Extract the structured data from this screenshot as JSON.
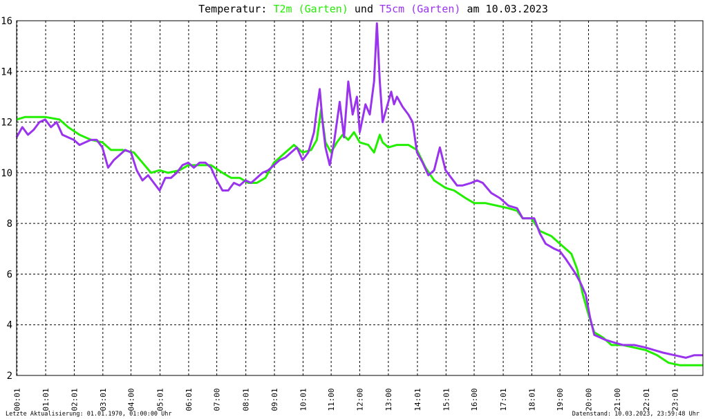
{
  "header": {
    "title_prefix": "Temperatur: ",
    "series1_label": "T2m (Garten)",
    "connector": " und ",
    "series2_label": "T5cm (Garten)",
    "title_suffix": " am 10.03.2023"
  },
  "footer": {
    "left": "Letzte Aktualisierung: 01.01.1970, 01:00:00 Uhr",
    "right": "Datenstand: 10.03.2023, 23:59:48 Uhr"
  },
  "colors": {
    "t2m": "#22ee00",
    "t5cm": "#9933ee",
    "grid": "#000000",
    "axis": "#000000"
  },
  "chart_data": {
    "type": "line",
    "title": "Temperatur: T2m (Garten) und T5cm (Garten) am 10.03.2023",
    "xlabel": "",
    "ylabel": "",
    "xlim": [
      0,
      24
    ],
    "ylim": [
      2,
      16
    ],
    "grid": true,
    "yticks": [
      2,
      4,
      6,
      8,
      10,
      12,
      14,
      16
    ],
    "xticks": [
      {
        "h": 0.0167,
        "label": "00:01"
      },
      {
        "h": 1.0167,
        "label": "01:01"
      },
      {
        "h": 2.0167,
        "label": "02:01"
      },
      {
        "h": 3.0167,
        "label": "03:01"
      },
      {
        "h": 4.0,
        "label": "04:00"
      },
      {
        "h": 5.0167,
        "label": "05:01"
      },
      {
        "h": 6.0167,
        "label": "06:01"
      },
      {
        "h": 7.0,
        "label": "07:00"
      },
      {
        "h": 8.0167,
        "label": "08:01"
      },
      {
        "h": 9.0167,
        "label": "09:01"
      },
      {
        "h": 10.0167,
        "label": "10:01"
      },
      {
        "h": 11.0,
        "label": "11:00"
      },
      {
        "h": 12.0,
        "label": "12:00"
      },
      {
        "h": 13.0,
        "label": "13:00"
      },
      {
        "h": 14.0167,
        "label": "14:01"
      },
      {
        "h": 15.0167,
        "label": "15:01"
      },
      {
        "h": 16.0,
        "label": "16:00"
      },
      {
        "h": 17.0167,
        "label": "17:01"
      },
      {
        "h": 18.0167,
        "label": "18:01"
      },
      {
        "h": 19.0,
        "label": "19:00"
      },
      {
        "h": 20.0,
        "label": "20:00"
      },
      {
        "h": 21.0,
        "label": "21:00"
      },
      {
        "h": 22.0167,
        "label": "22:01"
      },
      {
        "h": 23.0167,
        "label": "23:01"
      }
    ],
    "series": [
      {
        "name": "T2m (Garten)",
        "points": [
          [
            0.0,
            12.1
          ],
          [
            0.3,
            12.2
          ],
          [
            0.6,
            12.2
          ],
          [
            1.0,
            12.2
          ],
          [
            1.5,
            12.1
          ],
          [
            1.8,
            11.8
          ],
          [
            2.2,
            11.5
          ],
          [
            2.6,
            11.3
          ],
          [
            3.0,
            11.2
          ],
          [
            3.3,
            10.9
          ],
          [
            3.7,
            10.9
          ],
          [
            4.1,
            10.8
          ],
          [
            4.4,
            10.4
          ],
          [
            4.7,
            10.0
          ],
          [
            5.0,
            10.1
          ],
          [
            5.3,
            10.0
          ],
          [
            5.7,
            10.1
          ],
          [
            6.0,
            10.3
          ],
          [
            6.4,
            10.3
          ],
          [
            6.8,
            10.3
          ],
          [
            7.2,
            10.0
          ],
          [
            7.5,
            9.8
          ],
          [
            7.8,
            9.8
          ],
          [
            8.1,
            9.6
          ],
          [
            8.4,
            9.6
          ],
          [
            8.7,
            9.8
          ],
          [
            9.0,
            10.4
          ],
          [
            9.4,
            10.8
          ],
          [
            9.7,
            11.1
          ],
          [
            10.0,
            10.8
          ],
          [
            10.3,
            10.9
          ],
          [
            10.5,
            11.3
          ],
          [
            10.65,
            12.5
          ],
          [
            10.8,
            11.2
          ],
          [
            11.0,
            10.8
          ],
          [
            11.2,
            11.2
          ],
          [
            11.4,
            11.5
          ],
          [
            11.6,
            11.3
          ],
          [
            11.8,
            11.6
          ],
          [
            12.0,
            11.2
          ],
          [
            12.3,
            11.1
          ],
          [
            12.5,
            10.8
          ],
          [
            12.7,
            11.5
          ],
          [
            12.8,
            11.2
          ],
          [
            13.0,
            11.0
          ],
          [
            13.3,
            11.1
          ],
          [
            13.7,
            11.1
          ],
          [
            14.0,
            10.9
          ],
          [
            14.3,
            10.2
          ],
          [
            14.6,
            9.7
          ],
          [
            15.0,
            9.4
          ],
          [
            15.3,
            9.3
          ],
          [
            15.7,
            9.0
          ],
          [
            16.0,
            8.8
          ],
          [
            16.4,
            8.8
          ],
          [
            16.8,
            8.7
          ],
          [
            17.2,
            8.6
          ],
          [
            17.5,
            8.5
          ],
          [
            17.7,
            8.2
          ],
          [
            18.0,
            8.2
          ],
          [
            18.3,
            7.7
          ],
          [
            18.7,
            7.5
          ],
          [
            19.0,
            7.2
          ],
          [
            19.4,
            6.8
          ],
          [
            19.6,
            6.2
          ],
          [
            19.8,
            5.2
          ],
          [
            20.0,
            4.4
          ],
          [
            20.2,
            3.7
          ],
          [
            20.5,
            3.5
          ],
          [
            20.8,
            3.2
          ],
          [
            21.2,
            3.2
          ],
          [
            21.6,
            3.1
          ],
          [
            22.0,
            3.0
          ],
          [
            22.4,
            2.8
          ],
          [
            22.8,
            2.5
          ],
          [
            23.2,
            2.4
          ],
          [
            24.0,
            2.4
          ]
        ]
      },
      {
        "name": "T5cm (Garten)",
        "points": [
          [
            0.0,
            11.4
          ],
          [
            0.2,
            11.8
          ],
          [
            0.4,
            11.5
          ],
          [
            0.6,
            11.7
          ],
          [
            0.8,
            12.0
          ],
          [
            1.0,
            12.1
          ],
          [
            1.2,
            11.8
          ],
          [
            1.4,
            12.0
          ],
          [
            1.6,
            11.5
          ],
          [
            1.8,
            11.4
          ],
          [
            2.0,
            11.3
          ],
          [
            2.2,
            11.1
          ],
          [
            2.4,
            11.2
          ],
          [
            2.6,
            11.3
          ],
          [
            2.8,
            11.3
          ],
          [
            3.0,
            11.0
          ],
          [
            3.2,
            10.2
          ],
          [
            3.4,
            10.5
          ],
          [
            3.6,
            10.7
          ],
          [
            3.8,
            10.9
          ],
          [
            4.0,
            10.8
          ],
          [
            4.2,
            10.1
          ],
          [
            4.4,
            9.7
          ],
          [
            4.6,
            9.9
          ],
          [
            4.8,
            9.6
          ],
          [
            5.0,
            9.3
          ],
          [
            5.2,
            9.8
          ],
          [
            5.4,
            9.8
          ],
          [
            5.6,
            10.0
          ],
          [
            5.8,
            10.3
          ],
          [
            6.0,
            10.4
          ],
          [
            6.2,
            10.2
          ],
          [
            6.4,
            10.4
          ],
          [
            6.6,
            10.4
          ],
          [
            6.8,
            10.2
          ],
          [
            7.0,
            9.7
          ],
          [
            7.2,
            9.3
          ],
          [
            7.4,
            9.3
          ],
          [
            7.6,
            9.6
          ],
          [
            7.8,
            9.5
          ],
          [
            8.0,
            9.7
          ],
          [
            8.2,
            9.6
          ],
          [
            8.4,
            9.8
          ],
          [
            8.6,
            10.0
          ],
          [
            8.8,
            10.1
          ],
          [
            9.0,
            10.3
          ],
          [
            9.2,
            10.5
          ],
          [
            9.4,
            10.6
          ],
          [
            9.6,
            10.8
          ],
          [
            9.8,
            11.0
          ],
          [
            10.0,
            10.5
          ],
          [
            10.2,
            10.8
          ],
          [
            10.4,
            11.6
          ],
          [
            10.5,
            12.5
          ],
          [
            10.6,
            13.3
          ],
          [
            10.7,
            12.0
          ],
          [
            10.8,
            11.0
          ],
          [
            10.95,
            10.3
          ],
          [
            11.1,
            11.2
          ],
          [
            11.3,
            12.8
          ],
          [
            11.45,
            11.4
          ],
          [
            11.6,
            13.6
          ],
          [
            11.75,
            12.3
          ],
          [
            11.9,
            13.0
          ],
          [
            12.0,
            11.6
          ],
          [
            12.2,
            12.7
          ],
          [
            12.35,
            12.3
          ],
          [
            12.5,
            13.6
          ],
          [
            12.6,
            15.9
          ],
          [
            12.7,
            13.6
          ],
          [
            12.8,
            12.0
          ],
          [
            12.95,
            12.6
          ],
          [
            13.1,
            13.2
          ],
          [
            13.2,
            12.7
          ],
          [
            13.3,
            13.0
          ],
          [
            13.5,
            12.6
          ],
          [
            13.7,
            12.3
          ],
          [
            13.85,
            12.0
          ],
          [
            14.0,
            10.8
          ],
          [
            14.2,
            10.4
          ],
          [
            14.4,
            9.9
          ],
          [
            14.6,
            10.1
          ],
          [
            14.8,
            11.0
          ],
          [
            15.0,
            10.1
          ],
          [
            15.2,
            9.8
          ],
          [
            15.4,
            9.5
          ],
          [
            15.6,
            9.5
          ],
          [
            15.9,
            9.6
          ],
          [
            16.1,
            9.7
          ],
          [
            16.3,
            9.6
          ],
          [
            16.6,
            9.2
          ],
          [
            16.9,
            9.0
          ],
          [
            17.2,
            8.7
          ],
          [
            17.5,
            8.6
          ],
          [
            17.7,
            8.2
          ],
          [
            17.9,
            8.2
          ],
          [
            18.1,
            8.2
          ],
          [
            18.3,
            7.6
          ],
          [
            18.5,
            7.2
          ],
          [
            18.8,
            7.0
          ],
          [
            19.0,
            6.9
          ],
          [
            19.2,
            6.6
          ],
          [
            19.5,
            6.1
          ],
          [
            19.7,
            5.7
          ],
          [
            19.9,
            5.2
          ],
          [
            20.05,
            4.3
          ],
          [
            20.2,
            3.6
          ],
          [
            20.4,
            3.5
          ],
          [
            20.6,
            3.4
          ],
          [
            20.9,
            3.3
          ],
          [
            21.2,
            3.2
          ],
          [
            21.6,
            3.2
          ],
          [
            22.0,
            3.1
          ],
          [
            22.3,
            3.0
          ],
          [
            22.6,
            2.9
          ],
          [
            23.0,
            2.8
          ],
          [
            23.4,
            2.7
          ],
          [
            23.7,
            2.8
          ],
          [
            24.0,
            2.8
          ]
        ]
      }
    ]
  }
}
